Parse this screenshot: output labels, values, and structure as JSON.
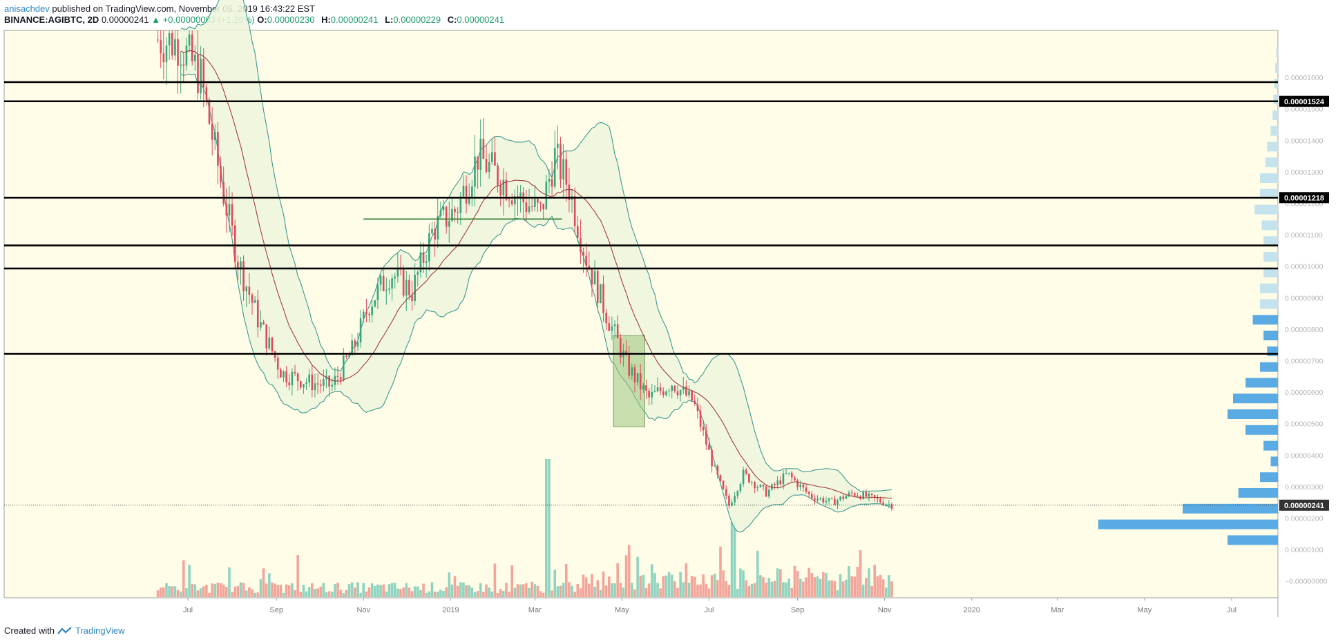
{
  "header": {
    "author": "anisachdev",
    "published_text": "published on TradingView.com, November 06, 2019 16:43:22 EST",
    "symbol": "BINANCE:AGIBTC, 2D",
    "last_price": "0.00000241",
    "change_arrow": "▲",
    "change": "+0.00000003 (+1.26%)",
    "ohlc": [
      {
        "label": "O:",
        "value": "0.00000230"
      },
      {
        "label": "H:",
        "value": "0.00000241"
      },
      {
        "label": "L:",
        "value": "0.00000229"
      },
      {
        "label": "C:",
        "value": "0.00000241"
      }
    ]
  },
  "footer": {
    "created_with": "Created with",
    "brand": "TradingView",
    "logo_icon": "tradingview-logo-icon"
  },
  "colors": {
    "background": "#fffde8",
    "up": "#3aa57a",
    "down": "#e0495a",
    "band": "#3b9a8f",
    "band_fill": "#eef4dc",
    "ma": "#a33c3c",
    "vol_up": "#8fd4c0",
    "vol_down": "#f3a59a",
    "vp_dark": "#5aabe3",
    "vp_light": "#c4e3ec",
    "box": "#9cc57e"
  },
  "chart_data": {
    "type": "candlestick",
    "title": "BINANCE:AGIBTC, 2D",
    "y_axis_labels": [
      "0.00001600",
      "0.00001500",
      "0.00001400",
      "0.00001300",
      "0.00001200",
      "0.00001100",
      "0.00001000",
      "0.00000900",
      "0.00000800",
      "0.00000700",
      "0.00000600",
      "0.00000500",
      "0.00000400",
      "0.00000300",
      "0.00000200",
      "0.00000100",
      "−0.00000000"
    ],
    "x_axis_labels": [
      "Jul",
      "Sep",
      "Nov",
      "2019",
      "Mar",
      "May",
      "Jul",
      "Sep",
      "Nov",
      "2020",
      "Mar",
      "May",
      "Jul"
    ],
    "ylim": [
      -2e-07,
      1.78e-05
    ],
    "horizontal_levels": [
      {
        "value": 1.585e-05
      },
      {
        "value": 1.524e-05,
        "label": "0.00001524"
      },
      {
        "value": 1.218e-05,
        "label": "0.00001218"
      },
      {
        "value": 1.066e-05
      },
      {
        "value": 9.93e-06
      },
      {
        "value": 7.22e-06
      }
    ],
    "current_price": {
      "value": 2.41e-06,
      "label": "0.00000241"
    },
    "trend_segment": {
      "from": "2018-11-01",
      "to": "2019-03-20",
      "value": 1.15e-05
    },
    "highlight_box": {
      "from": "2019-04-25",
      "to": "2019-05-17",
      "low": 4.9e-06,
      "high": 7.8e-06
    },
    "price_path": [
      [
        "2018-06-10",
        1.72e-05
      ],
      [
        "2018-06-25",
        1.71e-05
      ],
      [
        "2018-07-10",
        1.6e-05
      ],
      [
        "2018-07-25",
        1.25e-05
      ],
      [
        "2018-08-05",
        1.02e-05
      ],
      [
        "2018-08-20",
        8.2e-06
      ],
      [
        "2018-09-05",
        6.6e-06
      ],
      [
        "2018-09-25",
        6.3e-06
      ],
      [
        "2018-10-10",
        6.2e-06
      ],
      [
        "2018-10-25",
        7.4e-06
      ],
      [
        "2018-11-05",
        8.8e-06
      ],
      [
        "2018-11-20",
        9.8e-06
      ],
      [
        "2018-12-05",
        9.2e-06
      ],
      [
        "2018-12-20",
        1.12e-05
      ],
      [
        "2019-01-05",
        1.18e-05
      ],
      [
        "2019-01-20",
        1.35e-05
      ],
      [
        "2019-02-05",
        1.28e-05
      ],
      [
        "2019-02-20",
        1.21e-05
      ],
      [
        "2019-03-05",
        1.17e-05
      ],
      [
        "2019-03-15",
        1.35e-05
      ],
      [
        "2019-03-25",
        1.25e-05
      ],
      [
        "2019-04-05",
        1.04e-05
      ],
      [
        "2019-04-20",
        8.5e-06
      ],
      [
        "2019-05-05",
        6.8e-06
      ],
      [
        "2019-05-20",
        5.8e-06
      ],
      [
        "2019-06-05",
        6.3e-06
      ],
      [
        "2019-06-20",
        5.7e-06
      ],
      [
        "2019-07-05",
        3.5e-06
      ],
      [
        "2019-07-15",
        2.4e-06
      ],
      [
        "2019-07-25",
        3.4e-06
      ],
      [
        "2019-08-10",
        2.8e-06
      ],
      [
        "2019-08-25",
        3.4e-06
      ],
      [
        "2019-09-10",
        2.7e-06
      ],
      [
        "2019-09-25",
        2.5e-06
      ],
      [
        "2019-10-10",
        2.8e-06
      ],
      [
        "2019-10-25",
        2.6e-06
      ],
      [
        "2019-11-06",
        2.41e-06
      ]
    ],
    "volume_spikes": [
      {
        "date": "2019-03-10",
        "relative": 1.0
      },
      {
        "date": "2019-07-18",
        "relative": 0.55
      }
    ],
    "volume_profile": [
      {
        "price": 1.68e-05,
        "size": 0.01,
        "shade": "light"
      },
      {
        "price": 1.63e-05,
        "size": 0.015,
        "shade": "light"
      },
      {
        "price": 1.58e-05,
        "size": 0.02,
        "shade": "light"
      },
      {
        "price": 1.53e-05,
        "size": 0.025,
        "shade": "light"
      },
      {
        "price": 1.48e-05,
        "size": 0.03,
        "shade": "light"
      },
      {
        "price": 1.43e-05,
        "size": 0.04,
        "shade": "light"
      },
      {
        "price": 1.38e-05,
        "size": 0.06,
        "shade": "light"
      },
      {
        "price": 1.33e-05,
        "size": 0.07,
        "shade": "light"
      },
      {
        "price": 1.28e-05,
        "size": 0.1,
        "shade": "light"
      },
      {
        "price": 1.23e-05,
        "size": 0.1,
        "shade": "light"
      },
      {
        "price": 1.18e-05,
        "size": 0.13,
        "shade": "light"
      },
      {
        "price": 1.13e-05,
        "size": 0.09,
        "shade": "light"
      },
      {
        "price": 1.08e-05,
        "size": 0.08,
        "shade": "light"
      },
      {
        "price": 1.03e-05,
        "size": 0.08,
        "shade": "light"
      },
      {
        "price": 9.8e-06,
        "size": 0.08,
        "shade": "light"
      },
      {
        "price": 9.3e-06,
        "size": 0.1,
        "shade": "light"
      },
      {
        "price": 8.8e-06,
        "size": 0.1,
        "shade": "light"
      },
      {
        "price": 8.3e-06,
        "size": 0.14,
        "shade": "dark"
      },
      {
        "price": 7.8e-06,
        "size": 0.08,
        "shade": "dark"
      },
      {
        "price": 7.3e-06,
        "size": 0.06,
        "shade": "dark"
      },
      {
        "price": 6.8e-06,
        "size": 0.1,
        "shade": "dark"
      },
      {
        "price": 6.3e-06,
        "size": 0.18,
        "shade": "dark"
      },
      {
        "price": 5.8e-06,
        "size": 0.25,
        "shade": "dark"
      },
      {
        "price": 5.3e-06,
        "size": 0.28,
        "shade": "dark"
      },
      {
        "price": 4.8e-06,
        "size": 0.18,
        "shade": "dark"
      },
      {
        "price": 4.3e-06,
        "size": 0.08,
        "shade": "dark"
      },
      {
        "price": 3.8e-06,
        "size": 0.04,
        "shade": "dark"
      },
      {
        "price": 3.3e-06,
        "size": 0.1,
        "shade": "dark"
      },
      {
        "price": 2.8e-06,
        "size": 0.22,
        "shade": "dark"
      },
      {
        "price": 2.3e-06,
        "size": 0.53,
        "shade": "dark"
      },
      {
        "price": 1.8e-06,
        "size": 1.0,
        "shade": "dark"
      },
      {
        "price": 1.3e-06,
        "size": 0.28,
        "shade": "dark"
      }
    ]
  }
}
